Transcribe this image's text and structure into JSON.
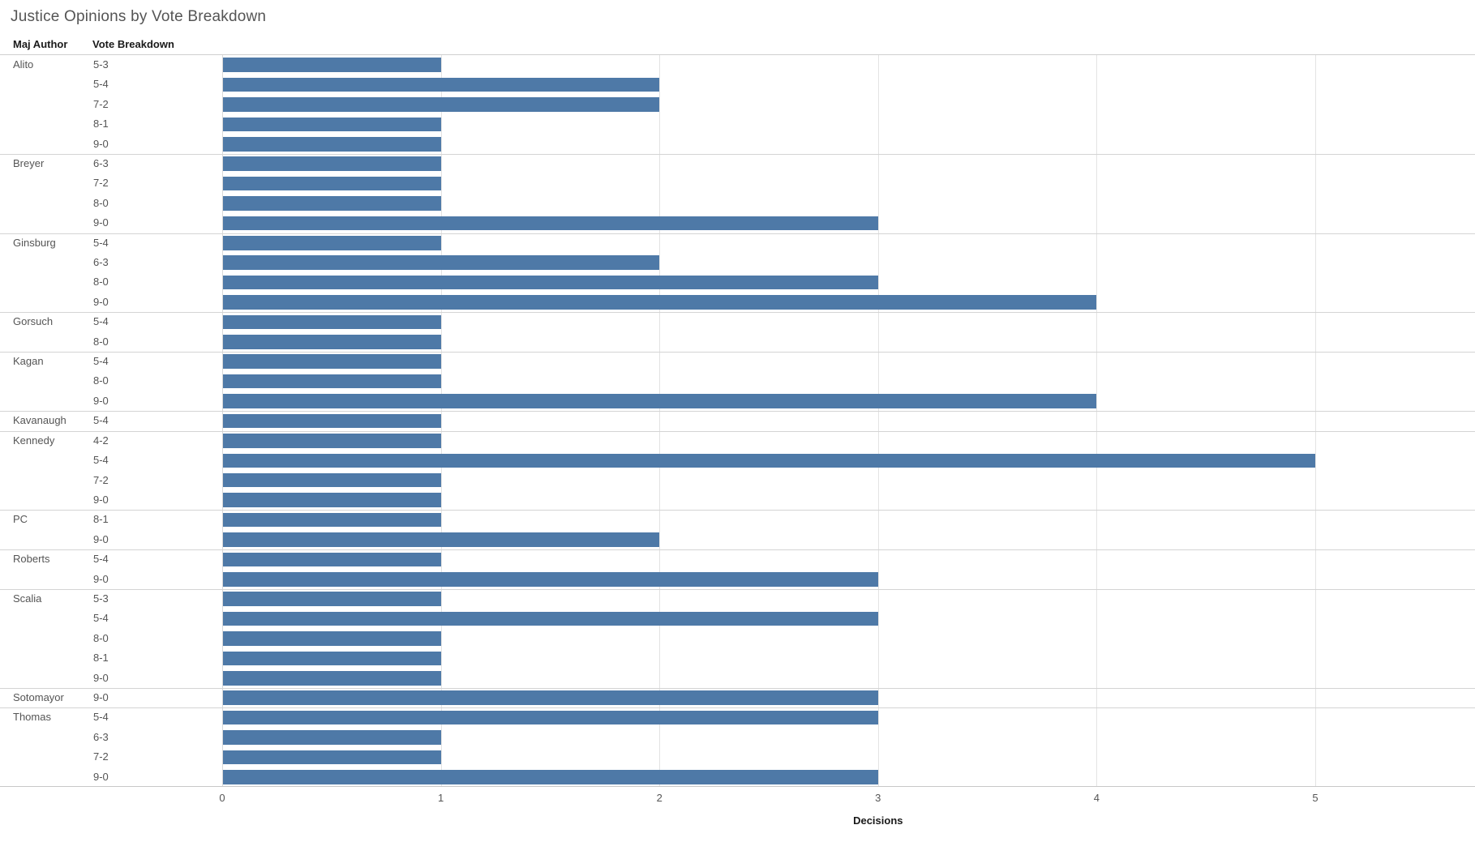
{
  "title": "Justice Opinions by Vote Breakdown",
  "columns": {
    "author": "Maj Author",
    "vote": "Vote Breakdown"
  },
  "axis": {
    "label": "Decisions",
    "ticks": [
      0,
      1,
      2,
      3,
      4,
      5
    ],
    "max": 5.73
  },
  "colors": {
    "bar": "#4e79a7"
  },
  "chart_data": {
    "type": "bar",
    "orientation": "horizontal",
    "title": "Justice Opinions by Vote Breakdown",
    "xlabel": "Decisions",
    "xlim": [
      0,
      5.73
    ],
    "grid": "vertical",
    "row_headers": [
      "Maj Author",
      "Vote Breakdown"
    ],
    "groups": [
      {
        "author": "Alito",
        "rows": [
          {
            "vote": "5-3",
            "value": 1
          },
          {
            "vote": "5-4",
            "value": 2
          },
          {
            "vote": "7-2",
            "value": 2
          },
          {
            "vote": "8-1",
            "value": 1
          },
          {
            "vote": "9-0",
            "value": 1
          }
        ]
      },
      {
        "author": "Breyer",
        "rows": [
          {
            "vote": "6-3",
            "value": 1
          },
          {
            "vote": "7-2",
            "value": 1
          },
          {
            "vote": "8-0",
            "value": 1
          },
          {
            "vote": "9-0",
            "value": 3
          }
        ]
      },
      {
        "author": "Ginsburg",
        "rows": [
          {
            "vote": "5-4",
            "value": 1
          },
          {
            "vote": "6-3",
            "value": 2
          },
          {
            "vote": "8-0",
            "value": 3
          },
          {
            "vote": "9-0",
            "value": 4
          }
        ]
      },
      {
        "author": "Gorsuch",
        "rows": [
          {
            "vote": "5-4",
            "value": 1
          },
          {
            "vote": "8-0",
            "value": 1
          }
        ]
      },
      {
        "author": "Kagan",
        "rows": [
          {
            "vote": "5-4",
            "value": 1
          },
          {
            "vote": "8-0",
            "value": 1
          },
          {
            "vote": "9-0",
            "value": 4
          }
        ]
      },
      {
        "author": "Kavanaugh",
        "rows": [
          {
            "vote": "5-4",
            "value": 1
          }
        ]
      },
      {
        "author": "Kennedy",
        "rows": [
          {
            "vote": "4-2",
            "value": 1
          },
          {
            "vote": "5-4",
            "value": 5
          },
          {
            "vote": "7-2",
            "value": 1
          },
          {
            "vote": "9-0",
            "value": 1
          }
        ]
      },
      {
        "author": "PC",
        "rows": [
          {
            "vote": "8-1",
            "value": 1
          },
          {
            "vote": "9-0",
            "value": 2
          }
        ]
      },
      {
        "author": "Roberts",
        "rows": [
          {
            "vote": "5-4",
            "value": 1
          },
          {
            "vote": "9-0",
            "value": 3
          }
        ]
      },
      {
        "author": "Scalia",
        "rows": [
          {
            "vote": "5-3",
            "value": 1
          },
          {
            "vote": "5-4",
            "value": 3
          },
          {
            "vote": "8-0",
            "value": 1
          },
          {
            "vote": "8-1",
            "value": 1
          },
          {
            "vote": "9-0",
            "value": 1
          }
        ]
      },
      {
        "author": "Sotomayor",
        "rows": [
          {
            "vote": "9-0",
            "value": 3
          }
        ]
      },
      {
        "author": "Thomas",
        "rows": [
          {
            "vote": "5-4",
            "value": 3
          },
          {
            "vote": "6-3",
            "value": 1
          },
          {
            "vote": "7-2",
            "value": 1
          },
          {
            "vote": "9-0",
            "value": 3
          }
        ]
      }
    ]
  }
}
